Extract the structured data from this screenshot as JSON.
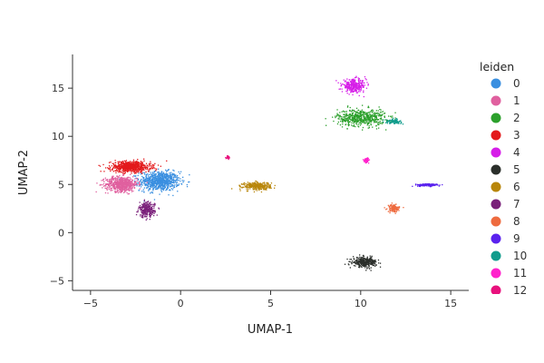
{
  "chart_data": {
    "type": "scatter",
    "title": "",
    "xlabel": "UMAP-1",
    "ylabel": "UMAP-2",
    "xlim": [
      -6,
      16
    ],
    "ylim": [
      -6,
      18.5
    ],
    "xticks": [
      -5,
      0,
      5,
      10,
      15
    ],
    "yticks": [
      -5,
      0,
      5,
      10,
      15
    ],
    "grid": false,
    "legend": {
      "title": "leiden",
      "placement": "right",
      "entries": [
        "0",
        "1",
        "2",
        "3",
        "4",
        "5",
        "6",
        "7",
        "8",
        "9",
        "10",
        "11",
        "12"
      ]
    },
    "clusters": [
      {
        "label": "0",
        "color": "#3a8fe0",
        "center": [
          -1.2,
          5.4
        ],
        "spread": [
          1.0,
          0.9
        ],
        "points": 800
      },
      {
        "label": "1",
        "color": "#e0609f",
        "center": [
          -3.3,
          5.1
        ],
        "spread": [
          0.8,
          0.7
        ],
        "points": 650
      },
      {
        "label": "2",
        "color": "#2ca02c",
        "center": [
          10.0,
          12.0
        ],
        "spread": [
          1.2,
          0.8
        ],
        "points": 550
      },
      {
        "label": "3",
        "color": "#e31a1c",
        "center": [
          -2.8,
          6.9
        ],
        "spread": [
          1.0,
          0.5
        ],
        "points": 700
      },
      {
        "label": "4",
        "color": "#d61ee8",
        "center": [
          9.6,
          15.3
        ],
        "spread": [
          0.6,
          0.6
        ],
        "points": 320
      },
      {
        "label": "5",
        "color": "#2b2f2b",
        "center": [
          10.2,
          -3.0
        ],
        "spread": [
          0.6,
          0.45
        ],
        "points": 340
      },
      {
        "label": "6",
        "color": "#b8860b",
        "center": [
          4.2,
          4.9
        ],
        "spread": [
          0.7,
          0.35
        ],
        "points": 320
      },
      {
        "label": "7",
        "color": "#7a1f7a",
        "center": [
          -1.9,
          2.4
        ],
        "spread": [
          0.4,
          0.7
        ],
        "points": 260
      },
      {
        "label": "8",
        "color": "#ee6b3f",
        "center": [
          11.8,
          2.6
        ],
        "spread": [
          0.3,
          0.35
        ],
        "points": 120
      },
      {
        "label": "9",
        "color": "#5a22ee",
        "center": [
          13.7,
          5.0
        ],
        "spread": [
          0.6,
          0.12
        ],
        "points": 150
      },
      {
        "label": "10",
        "color": "#119c8c",
        "center": [
          11.8,
          11.6
        ],
        "spread": [
          0.4,
          0.2
        ],
        "points": 100
      },
      {
        "label": "11",
        "color": "#ff22cc",
        "center": [
          10.3,
          7.6
        ],
        "spread": [
          0.12,
          0.2
        ],
        "points": 70
      },
      {
        "label": "12",
        "color": "#e8117d",
        "center": [
          2.6,
          7.9
        ],
        "spread": [
          0.1,
          0.15
        ],
        "points": 30
      }
    ]
  }
}
